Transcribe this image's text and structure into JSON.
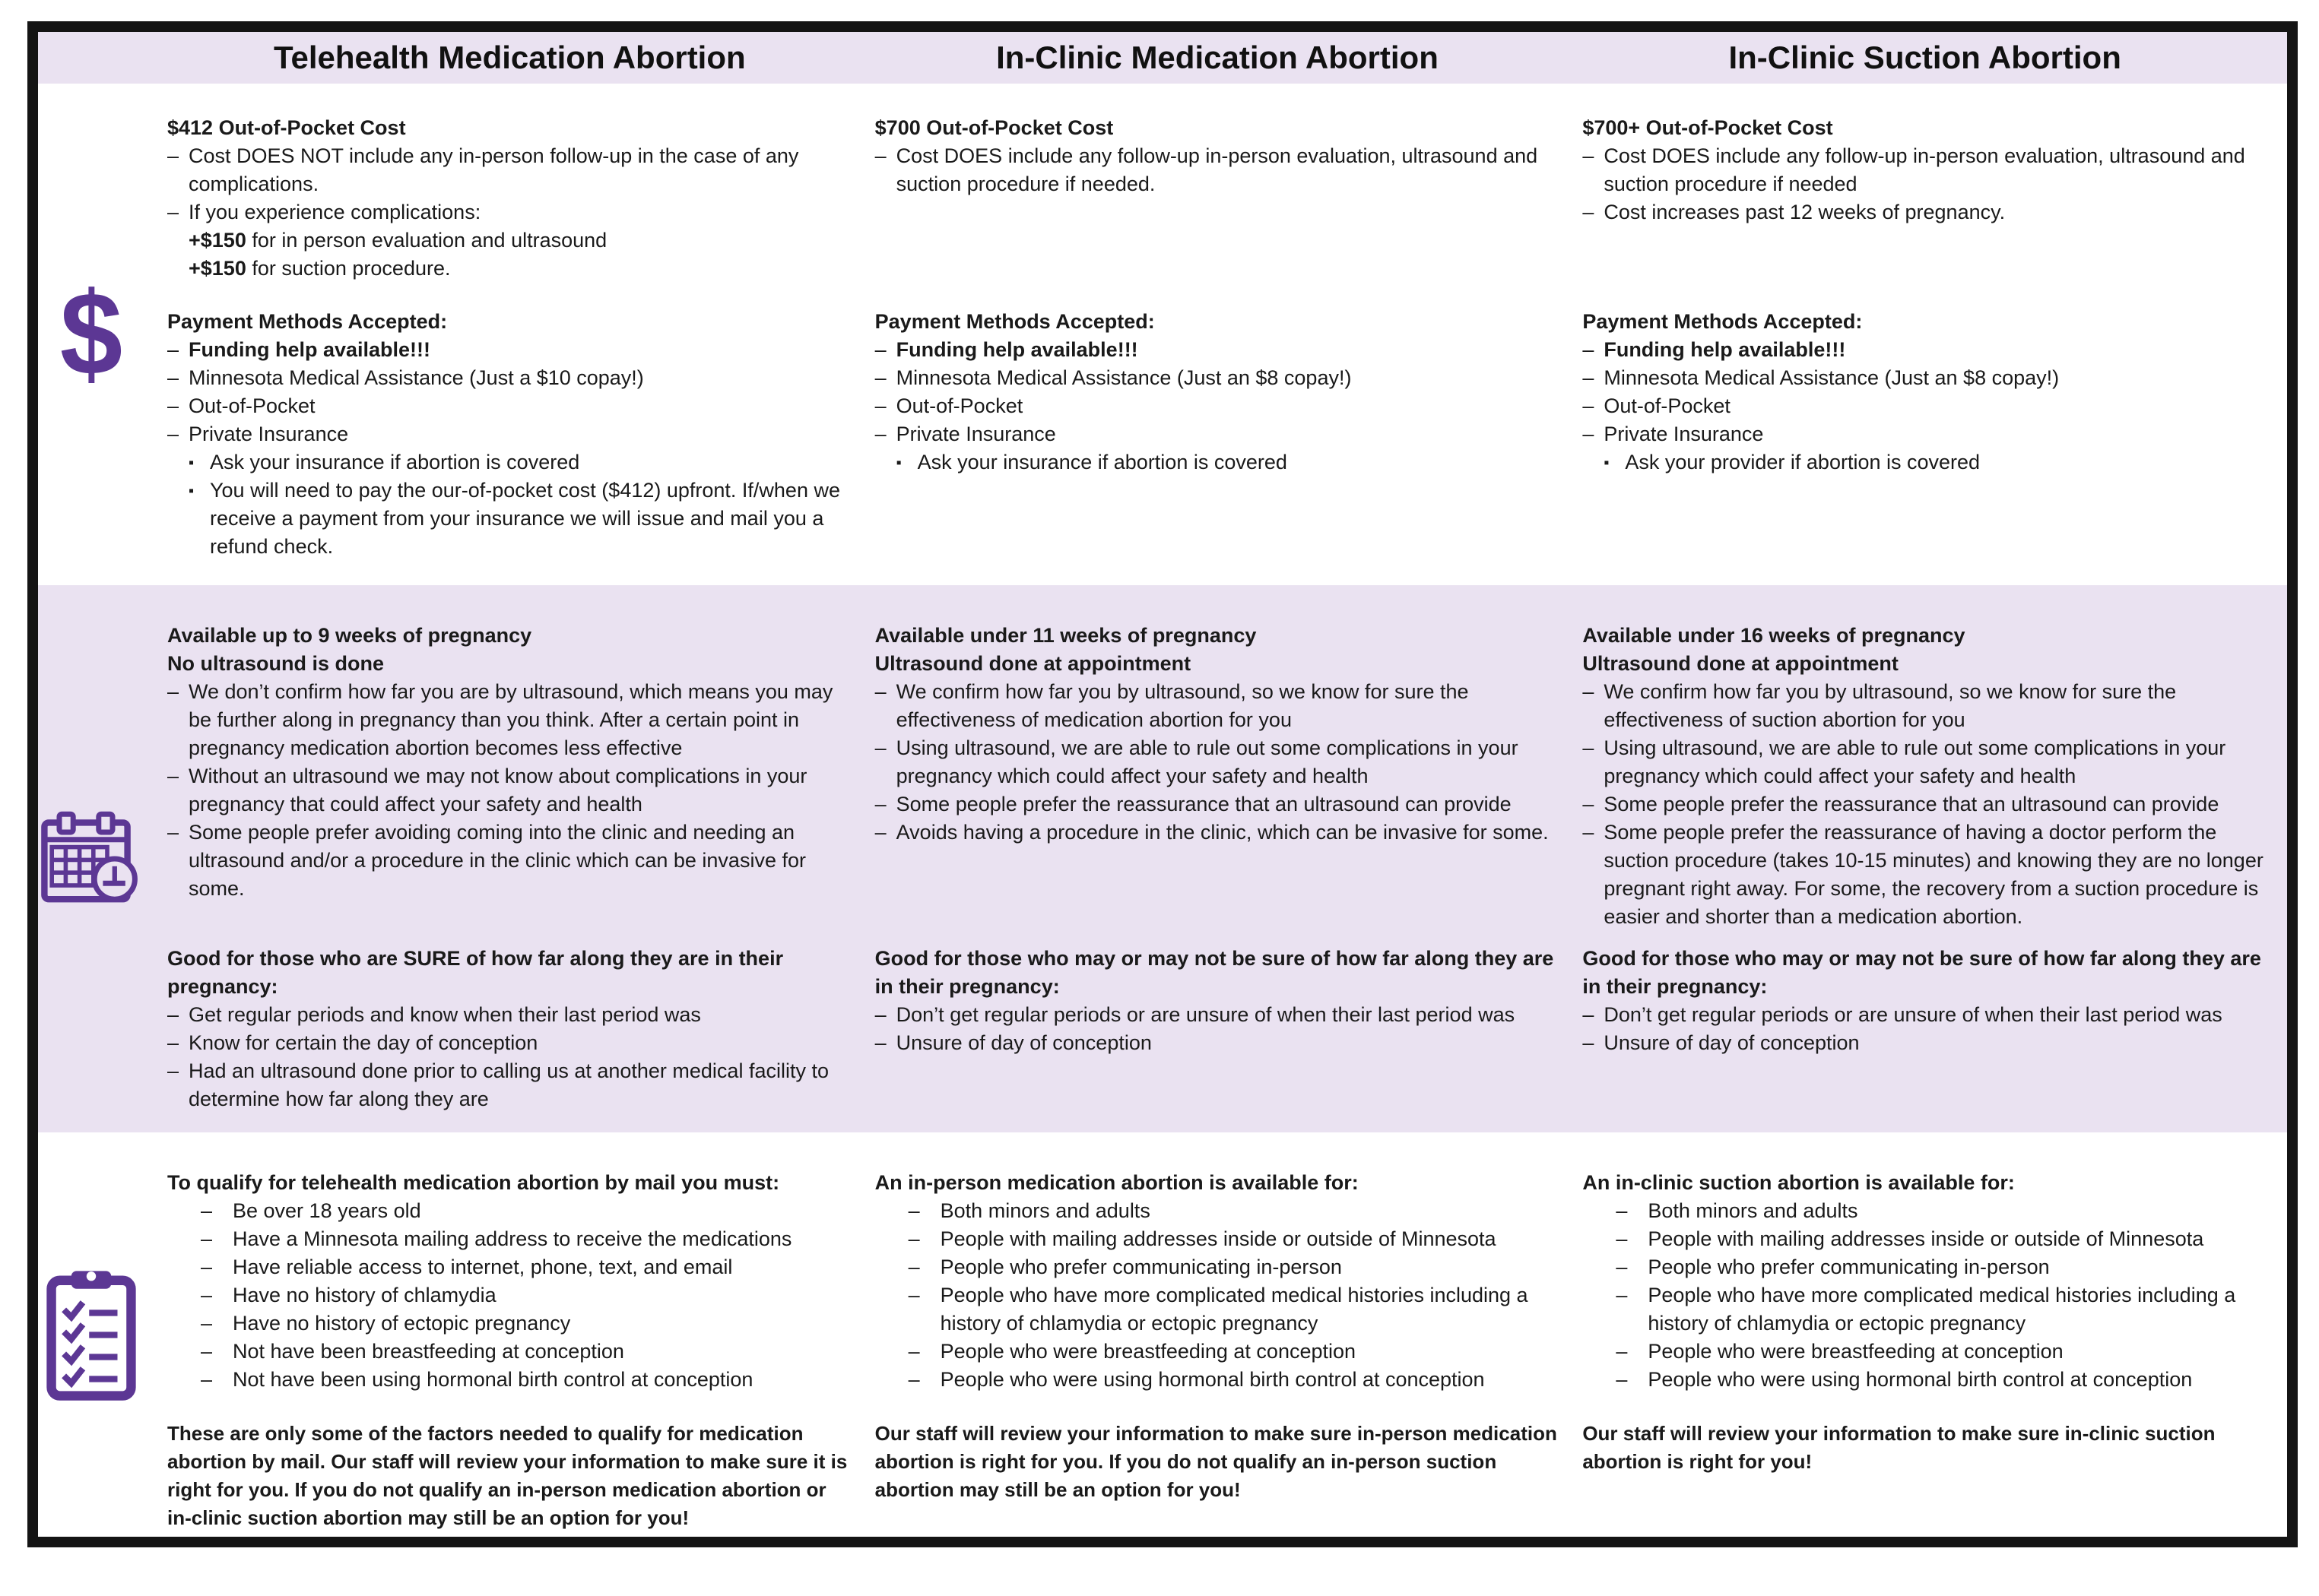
{
  "accent_color": "#5c3794",
  "band_color": "#eae2f1",
  "icons": [
    {
      "name": "dollar-icon",
      "glyph": "$"
    },
    {
      "name": "calendar-clock-icon"
    },
    {
      "name": "checklist-clipboard-icon"
    }
  ],
  "columns": [
    {
      "title": "Telehealth Medication Abortion",
      "cost": {
        "a": [
          {
            "k": "h",
            "t": "$412 Out-of-Pocket Cost"
          },
          {
            "k": "d",
            "t": "Cost DOES NOT include any in-person follow-up in the case of any complications."
          },
          {
            "k": "d",
            "t": "If you experience complications:"
          },
          {
            "k": "x",
            "b": "+$150",
            "t": " for in person evaluation and ultrasound"
          },
          {
            "k": "x",
            "b": "+$150",
            "t": " for suction procedure."
          }
        ],
        "b": [
          {
            "k": "h",
            "t": "Payment Methods Accepted:"
          },
          {
            "k": "d",
            "b": "Funding help available!!!"
          },
          {
            "k": "d",
            "t": "Minnesota Medical Assistance (Just a $10 copay!)"
          },
          {
            "k": "d",
            "t": "Out-of-Pocket"
          },
          {
            "k": "d",
            "t": "Private Insurance"
          },
          {
            "k": "s",
            "t": "Ask your insurance if abortion is covered"
          },
          {
            "k": "s",
            "t": "You will need to pay the our-of-pocket cost ($412) upfront. If/when we receive a payment from your insurance we will issue and mail you a refund check."
          }
        ]
      },
      "timing": {
        "a": [
          {
            "k": "h",
            "t": "Available up to 9 weeks of pregnancy"
          },
          {
            "k": "h",
            "t": "No ultrasound is done"
          },
          {
            "k": "d",
            "t": "We don’t confirm how far you are by ultrasound, which means you may be further along in pregnancy than you think. After a certain point in pregnancy medication abortion becomes less effective"
          },
          {
            "k": "d",
            "t": "Without an ultrasound we may not know about complications in your pregnancy that could affect your safety and health"
          },
          {
            "k": "d",
            "t": "Some people prefer avoiding coming into the clinic and needing an ultrasound and/or a procedure in the clinic which can be invasive for some."
          }
        ],
        "b": [
          {
            "k": "h",
            "t": "Good for those who are SURE of how far along they are in their pregnancy:"
          },
          {
            "k": "d",
            "t": "Get regular periods and know when their last period was"
          },
          {
            "k": "d",
            "t": "Know for certain the day of conception"
          },
          {
            "k": "d",
            "t": "Had an ultrasound done prior to calling us at another medical facility to determine how far along they are"
          }
        ]
      },
      "eligibility": {
        "a": [
          {
            "k": "h",
            "t": "To qualify for telehealth medication abortion by mail you must:"
          },
          {
            "k": "dd",
            "t": "Be over 18 years old"
          },
          {
            "k": "dd",
            "t": "Have a Minnesota mailing address to receive the medications"
          },
          {
            "k": "dd",
            "t": "Have reliable access to internet, phone, text, and email"
          },
          {
            "k": "dd",
            "t": "Have no history of chlamydia"
          },
          {
            "k": "dd",
            "t": "Have no history of ectopic pregnancy"
          },
          {
            "k": "dd",
            "t": "Not have been breastfeeding at conception"
          },
          {
            "k": "dd",
            "t": "Not have been using hormonal birth control at conception"
          }
        ],
        "b": [
          {
            "k": "bp",
            "t": "These are only some of the factors needed to qualify for medication abortion by mail. Our staff will review your information to make sure it is right for you. If you do not qualify an in-person medication abortion or in-clinic suction abortion may still be an option for you!"
          }
        ]
      }
    },
    {
      "title": "In-Clinic Medication Abortion",
      "cost": {
        "a": [
          {
            "k": "h",
            "t": "$700 Out-of-Pocket Cost"
          },
          {
            "k": "d",
            "t": "Cost DOES include any follow-up in-person evaluation, ultrasound and suction procedure if needed."
          }
        ],
        "b": [
          {
            "k": "h",
            "t": "Payment Methods Accepted:"
          },
          {
            "k": "d",
            "b": "Funding help available!!!"
          },
          {
            "k": "d",
            "t": "Minnesota Medical Assistance (Just an $8 copay!)"
          },
          {
            "k": "d",
            "t": "Out-of-Pocket"
          },
          {
            "k": "d",
            "t": "Private Insurance"
          },
          {
            "k": "s",
            "t": "Ask your insurance if abortion is covered"
          }
        ]
      },
      "timing": {
        "a": [
          {
            "k": "h",
            "t": "Available under 11 weeks of pregnancy"
          },
          {
            "k": "h",
            "t": "Ultrasound done at appointment"
          },
          {
            "k": "d",
            "t": "We confirm how far you by ultrasound, so we know for sure the effectiveness of medication abortion for you"
          },
          {
            "k": "d",
            "t": "Using ultrasound, we are able to rule out some complications in your pregnancy which could affect your safety and health"
          },
          {
            "k": "d",
            "t": "Some people prefer the reassurance that an ultrasound can provide"
          },
          {
            "k": "d",
            "t": "Avoids having a procedure in the clinic, which can be invasive for some."
          }
        ],
        "b": [
          {
            "k": "h",
            "t": "Good for those who may or may not be sure of how far along they are in their pregnancy:"
          },
          {
            "k": "d",
            "t": "Don’t get regular periods or are unsure of when their last period was"
          },
          {
            "k": "d",
            "t": "Unsure of day of conception"
          }
        ]
      },
      "eligibility": {
        "a": [
          {
            "k": "h",
            "t": "An in-person medication abortion is available for:"
          },
          {
            "k": "dd",
            "t": "Both minors and adults"
          },
          {
            "k": "dd",
            "t": "People with mailing addresses inside or outside of Minnesota"
          },
          {
            "k": "dd",
            "t": "People who prefer communicating in-person"
          },
          {
            "k": "dd",
            "t": "People who have more complicated medical histories including a history of chlamydia or ectopic pregnancy"
          },
          {
            "k": "dd",
            "t": "People who were breastfeeding at conception"
          },
          {
            "k": "dd",
            "t": "People who were using hormonal birth control at conception"
          }
        ],
        "b": [
          {
            "k": "bp",
            "t": "Our staff will review your information to make sure in-person medication abortion is right for you. If you do not qualify an in-person suction abortion may still be an option for you!"
          }
        ]
      }
    },
    {
      "title": "In-Clinic Suction Abortion",
      "cost": {
        "a": [
          {
            "k": "h",
            "t": "$700+ Out-of-Pocket Cost"
          },
          {
            "k": "d",
            "t": "Cost DOES include any follow-up in-person evaluation, ultrasound and suction procedure if needed"
          },
          {
            "k": "d",
            "t": "Cost increases past 12 weeks of pregnancy."
          }
        ],
        "b": [
          {
            "k": "h",
            "t": "Payment Methods Accepted:"
          },
          {
            "k": "d",
            "b": "Funding help available!!!"
          },
          {
            "k": "d",
            "t": "Minnesota Medical Assistance (Just an $8 copay!)"
          },
          {
            "k": "d",
            "t": "Out-of-Pocket"
          },
          {
            "k": "d",
            "t": "Private Insurance"
          },
          {
            "k": "s",
            "t": "Ask your provider if abortion is covered"
          }
        ]
      },
      "timing": {
        "a": [
          {
            "k": "h",
            "t": "Available under 16 weeks of pregnancy"
          },
          {
            "k": "h",
            "t": "Ultrasound done at appointment"
          },
          {
            "k": "d",
            "t": "We confirm how far you by ultrasound, so we know for sure the effectiveness of suction abortion for you"
          },
          {
            "k": "d",
            "t": "Using ultrasound, we are able to rule out some complications in your pregnancy which could affect your safety and health"
          },
          {
            "k": "d",
            "t": "Some people prefer the reassurance that an ultrasound can provide"
          },
          {
            "k": "d",
            "t": "Some people prefer the reassurance of having a doctor perform the suction procedure (takes 10-15 minutes) and knowing they are no longer pregnant right away. For some, the recovery from a suction procedure is easier and shorter than a medication abortion."
          }
        ],
        "b": [
          {
            "k": "h",
            "t": "Good for those who may or may not be sure of how far along they are in their pregnancy:"
          },
          {
            "k": "d",
            "t": "Don’t get regular periods or are unsure of when their last period was"
          },
          {
            "k": "d",
            "t": "Unsure of day of conception"
          }
        ]
      },
      "eligibility": {
        "a": [
          {
            "k": "h",
            "t": "An in-clinic suction abortion is available for:"
          },
          {
            "k": "dd",
            "t": "Both minors and adults"
          },
          {
            "k": "dd",
            "t": "People with mailing addresses inside or outside of Minnesota"
          },
          {
            "k": "dd",
            "t": "People who prefer communicating in-person"
          },
          {
            "k": "dd",
            "t": "People who have more complicated medical histories including a history of chlamydia or ectopic pregnancy"
          },
          {
            "k": "dd",
            "t": "People who were breastfeeding at conception"
          },
          {
            "k": "dd",
            "t": "People who were using hormonal birth control at conception"
          }
        ],
        "b": [
          {
            "k": "bp",
            "t": "Our staff will review your information to make sure in-clinic suction abortion is right for you!"
          }
        ]
      }
    }
  ]
}
